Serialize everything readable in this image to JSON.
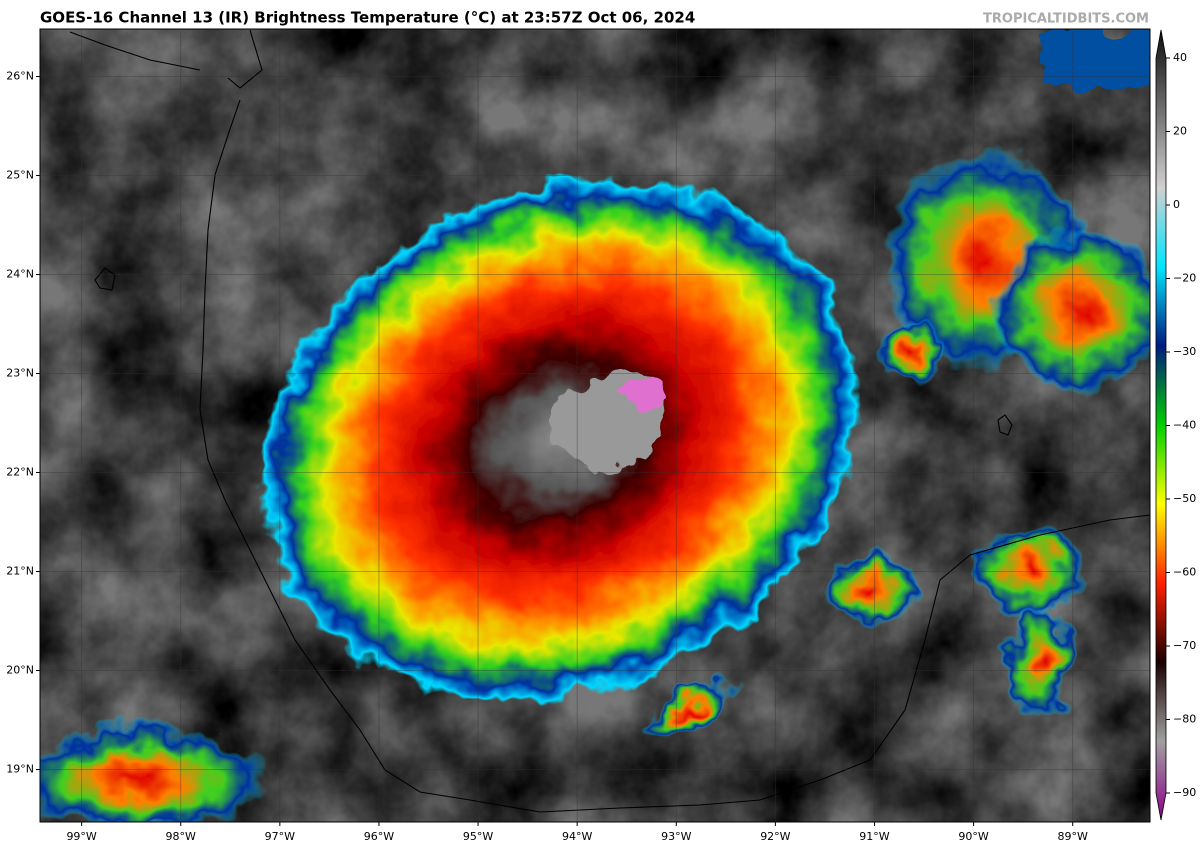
{
  "header": {
    "title": "GOES-16 Channel 13 (IR) Brightness Temperature (°C) at 23:57Z Oct 06, 2024",
    "watermark": "TROPICALTIDBITS.COM"
  },
  "map": {
    "xlim": [
      -99.42,
      -88.22
    ],
    "ylim": [
      18.47,
      26.48
    ],
    "grid": true,
    "xticks": [
      {
        "value": -99,
        "label": "99°W"
      },
      {
        "value": -98,
        "label": "98°W"
      },
      {
        "value": -97,
        "label": "97°W"
      },
      {
        "value": -96,
        "label": "96°W"
      },
      {
        "value": -95,
        "label": "95°W"
      },
      {
        "value": -94,
        "label": "94°W"
      },
      {
        "value": -93,
        "label": "93°W"
      },
      {
        "value": -92,
        "label": "92°W"
      },
      {
        "value": -91,
        "label": "91°W"
      },
      {
        "value": -90,
        "label": "90°W"
      },
      {
        "value": -89,
        "label": "89°W"
      }
    ],
    "yticks": [
      {
        "value": 19,
        "label": "19°N"
      },
      {
        "value": 20,
        "label": "20°N"
      },
      {
        "value": 21,
        "label": "21°N"
      },
      {
        "value": 22,
        "label": "22°N"
      },
      {
        "value": 23,
        "label": "23°N"
      },
      {
        "value": 24,
        "label": "24°N"
      },
      {
        "value": 25,
        "label": "25°N"
      },
      {
        "value": 26,
        "label": "26°N"
      }
    ]
  },
  "colorbar": {
    "ticks": [
      40,
      20,
      0,
      {
        "value": -20,
        "label": "−20"
      },
      {
        "value": -30,
        "label": "−30"
      },
      {
        "value": -40,
        "label": "−40"
      },
      {
        "value": -50,
        "label": "−50"
      },
      {
        "value": -60,
        "label": "−60"
      },
      {
        "value": -70,
        "label": "−70"
      },
      {
        "value": -80,
        "label": "−80"
      },
      {
        "value": -90,
        "label": "−90"
      }
    ],
    "colors": [
      "#0d0d0d",
      "#6e6e6e",
      "#d0d0d0",
      "#00e5ff",
      "#001a80",
      "#00d000",
      "#ffff00",
      "#ff2000",
      "#1a0000",
      "#a0a0a0",
      "#8a008a"
    ]
  }
}
